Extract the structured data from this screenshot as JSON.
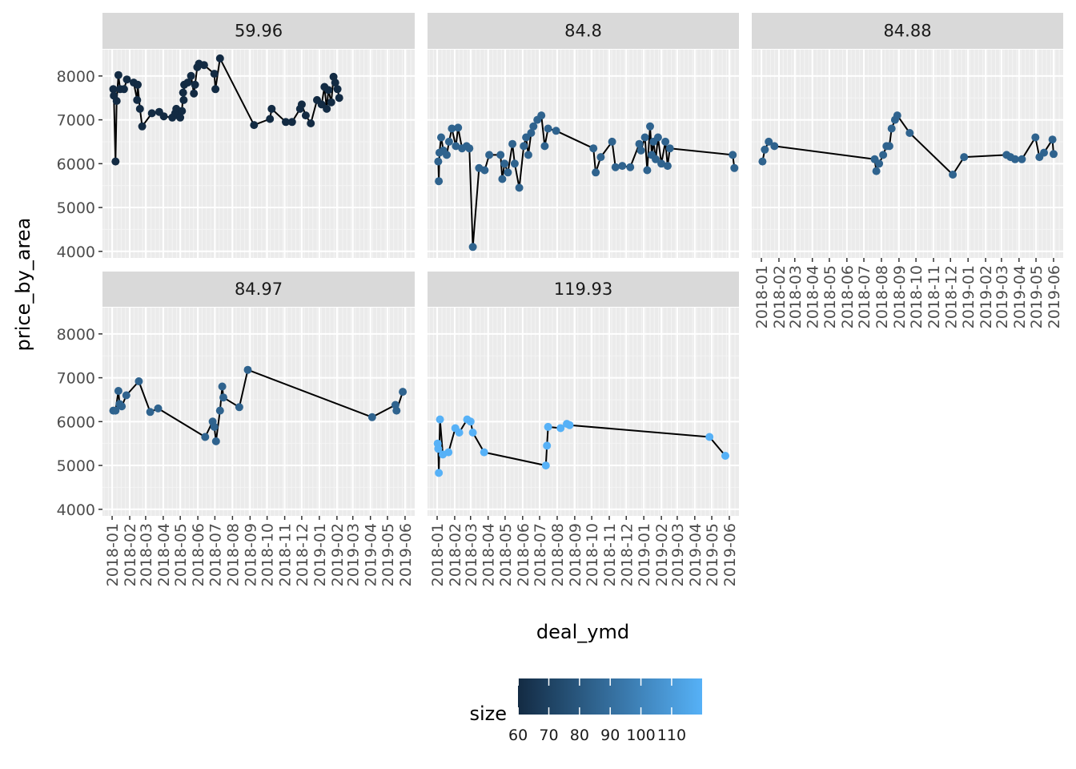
{
  "chart_data": {
    "type": "line",
    "subtype": "faceted line + points (ggplot2 facet_wrap)",
    "xlabel": "deal_ymd",
    "ylabel": "price_by_area",
    "xlim": [
      "2017-12-15",
      "2019-06-18"
    ],
    "ylim": [
      3850,
      8600
    ],
    "y_ticks": [
      4000,
      5000,
      6000,
      7000,
      8000
    ],
    "x_ticks": [
      "2018-01",
      "2018-02",
      "2018-03",
      "2018-04",
      "2018-05",
      "2018-06",
      "2018-07",
      "2018-08",
      "2018-09",
      "2018-10",
      "2018-11",
      "2018-12",
      "2019-01",
      "2019-02",
      "2019-03",
      "2019-04",
      "2019-05",
      "2019-06"
    ],
    "grid": true,
    "panel_background": "#ebebeb",
    "strip_background": "#d9d9d9",
    "line_color": "#000000",
    "legend": {
      "title": "size",
      "position": "bottom",
      "type": "colorbar",
      "range": [
        59.96,
        119.93
      ],
      "breaks": [
        60,
        70,
        80,
        90,
        100,
        110
      ],
      "break_labels": [
        "60",
        "70",
        "80",
        "90",
        "100",
        "110"
      ],
      "color_low": "#132B43",
      "color_high": "#56B1F7"
    },
    "facets": [
      {
        "label": "59.96",
        "size": 59.96,
        "points": [
          [
            "2018-01-03",
            7700
          ],
          [
            "2018-01-04",
            7550
          ],
          [
            "2018-01-07",
            6050
          ],
          [
            "2018-01-09",
            7430
          ],
          [
            "2018-01-12",
            8020
          ],
          [
            "2018-01-15",
            7700
          ],
          [
            "2018-01-22",
            7700
          ],
          [
            "2018-01-27",
            7920
          ],
          [
            "2018-02-08",
            7850
          ],
          [
            "2018-02-14",
            7450
          ],
          [
            "2018-02-15",
            7800
          ],
          [
            "2018-02-19",
            7250
          ],
          [
            "2018-02-23",
            6850
          ],
          [
            "2018-03-12",
            7150
          ],
          [
            "2018-03-25",
            7180
          ],
          [
            "2018-04-02",
            7080
          ],
          [
            "2018-04-17",
            7050
          ],
          [
            "2018-04-22",
            7150
          ],
          [
            "2018-04-24",
            7250
          ],
          [
            "2018-04-27",
            7100
          ],
          [
            "2018-05-01",
            7050
          ],
          [
            "2018-05-04",
            7200
          ],
          [
            "2018-05-06",
            7620
          ],
          [
            "2018-05-07",
            7450
          ],
          [
            "2018-05-08",
            7800
          ],
          [
            "2018-05-14",
            7850
          ],
          [
            "2018-05-20",
            8000
          ],
          [
            "2018-05-25",
            7600
          ],
          [
            "2018-05-27",
            7800
          ],
          [
            "2018-05-31",
            8200
          ],
          [
            "2018-06-03",
            8280
          ],
          [
            "2018-06-12",
            8250
          ],
          [
            "2018-06-30",
            8050
          ],
          [
            "2018-07-02",
            7700
          ],
          [
            "2018-07-10",
            8400
          ],
          [
            "2018-09-08",
            6880
          ],
          [
            "2018-10-06",
            7020
          ],
          [
            "2018-10-09",
            7250
          ],
          [
            "2018-11-03",
            6950
          ],
          [
            "2018-11-14",
            6950
          ],
          [
            "2018-11-28",
            7250
          ],
          [
            "2018-12-01",
            7350
          ],
          [
            "2018-12-08",
            7100
          ],
          [
            "2018-12-17",
            6920
          ],
          [
            "2018-12-28",
            7450
          ],
          [
            "2019-01-05",
            7350
          ],
          [
            "2019-01-10",
            7750
          ],
          [
            "2019-01-14",
            7250
          ],
          [
            "2019-01-17",
            7680
          ],
          [
            "2019-01-22",
            7400
          ],
          [
            "2019-01-26",
            7980
          ],
          [
            "2019-01-29",
            7850
          ],
          [
            "2019-02-02",
            7700
          ],
          [
            "2019-02-05",
            7500
          ]
        ]
      },
      {
        "label": "84.8",
        "size": 84.8,
        "points": [
          [
            "2018-01-03",
            6050
          ],
          [
            "2018-01-04",
            5600
          ],
          [
            "2018-01-05",
            6250
          ],
          [
            "2018-01-08",
            6600
          ],
          [
            "2018-01-12",
            6300
          ],
          [
            "2018-01-18",
            6200
          ],
          [
            "2018-01-22",
            6500
          ],
          [
            "2018-01-27",
            6800
          ],
          [
            "2018-02-03",
            6400
          ],
          [
            "2018-02-07",
            6820
          ],
          [
            "2018-02-14",
            6350
          ],
          [
            "2018-02-22",
            6400
          ],
          [
            "2018-02-27",
            6350
          ],
          [
            "2018-03-05",
            4100
          ],
          [
            "2018-03-16",
            5900
          ],
          [
            "2018-03-26",
            5850
          ],
          [
            "2018-04-03",
            6200
          ],
          [
            "2018-04-23",
            6200
          ],
          [
            "2018-04-26",
            5650
          ],
          [
            "2018-04-30",
            6000
          ],
          [
            "2018-05-06",
            5800
          ],
          [
            "2018-05-14",
            6450
          ],
          [
            "2018-05-18",
            6000
          ],
          [
            "2018-05-26",
            5450
          ],
          [
            "2018-06-03",
            6400
          ],
          [
            "2018-06-07",
            6600
          ],
          [
            "2018-06-11",
            6200
          ],
          [
            "2018-06-16",
            6700
          ],
          [
            "2018-06-20",
            6850
          ],
          [
            "2018-06-27",
            7000
          ],
          [
            "2018-07-04",
            7100
          ],
          [
            "2018-07-10",
            6400
          ],
          [
            "2018-07-16",
            6800
          ],
          [
            "2018-07-30",
            6750
          ],
          [
            "2018-10-04",
            6350
          ],
          [
            "2018-10-08",
            5800
          ],
          [
            "2018-10-17",
            6150
          ],
          [
            "2018-11-06",
            6500
          ],
          [
            "2018-11-12",
            5920
          ],
          [
            "2018-11-24",
            5950
          ],
          [
            "2018-12-08",
            5920
          ],
          [
            "2018-12-24",
            6450
          ],
          [
            "2018-12-27",
            6300
          ],
          [
            "2019-01-03",
            6600
          ],
          [
            "2019-01-07",
            5850
          ],
          [
            "2019-01-12",
            6850
          ],
          [
            "2019-01-15",
            6200
          ],
          [
            "2019-01-18",
            6500
          ],
          [
            "2019-01-22",
            6100
          ],
          [
            "2019-01-26",
            6600
          ],
          [
            "2019-02-01",
            6000
          ],
          [
            "2019-02-08",
            6500
          ],
          [
            "2019-02-12",
            5950
          ],
          [
            "2019-02-16",
            6350
          ],
          [
            "2019-06-07",
            6200
          ],
          [
            "2019-06-10",
            5900
          ]
        ]
      },
      {
        "label": "84.88",
        "size": 84.88,
        "points": [
          [
            "2018-01-03",
            6050
          ],
          [
            "2018-01-07",
            6320
          ],
          [
            "2018-01-14",
            6500
          ],
          [
            "2018-01-24",
            6400
          ],
          [
            "2018-07-20",
            6100
          ],
          [
            "2018-07-23",
            5830
          ],
          [
            "2018-07-28",
            6000
          ],
          [
            "2018-08-04",
            6200
          ],
          [
            "2018-08-10",
            6400
          ],
          [
            "2018-08-15",
            6400
          ],
          [
            "2018-08-19",
            6800
          ],
          [
            "2018-08-25",
            7000
          ],
          [
            "2018-08-29",
            7100
          ],
          [
            "2018-09-20",
            6700
          ],
          [
            "2018-12-05",
            5750
          ],
          [
            "2018-12-25",
            6150
          ],
          [
            "2019-03-10",
            6200
          ],
          [
            "2019-03-17",
            6150
          ],
          [
            "2019-03-25",
            6100
          ],
          [
            "2019-04-06",
            6100
          ],
          [
            "2019-04-30",
            6600
          ],
          [
            "2019-05-07",
            6150
          ],
          [
            "2019-05-15",
            6250
          ],
          [
            "2019-05-30",
            6550
          ],
          [
            "2019-06-01",
            6220
          ]
        ]
      },
      {
        "label": "84.97",
        "size": 84.97,
        "points": [
          [
            "2018-01-03",
            6250
          ],
          [
            "2018-01-07",
            6250
          ],
          [
            "2018-01-12",
            6700
          ],
          [
            "2018-01-14",
            6400
          ],
          [
            "2018-01-18",
            6350
          ],
          [
            "2018-01-26",
            6600
          ],
          [
            "2018-02-17",
            6920
          ],
          [
            "2018-03-09",
            6220
          ],
          [
            "2018-03-23",
            6300
          ],
          [
            "2018-06-14",
            5650
          ],
          [
            "2018-06-27",
            6000
          ],
          [
            "2018-06-30",
            5880
          ],
          [
            "2018-07-03",
            5550
          ],
          [
            "2018-07-10",
            6250
          ],
          [
            "2018-07-14",
            6800
          ],
          [
            "2018-07-16",
            6550
          ],
          [
            "2018-08-13",
            6330
          ],
          [
            "2018-08-28",
            7180
          ],
          [
            "2019-04-04",
            6100
          ],
          [
            "2019-05-15",
            6380
          ],
          [
            "2019-05-17",
            6250
          ],
          [
            "2019-05-28",
            6680
          ]
        ]
      },
      {
        "label": "119.93",
        "size": 119.93,
        "points": [
          [
            "2018-01-02",
            5500
          ],
          [
            "2018-01-03",
            5380
          ],
          [
            "2018-01-04",
            4830
          ],
          [
            "2018-01-06",
            6050
          ],
          [
            "2018-01-11",
            5250
          ],
          [
            "2018-01-21",
            5300
          ],
          [
            "2018-02-02",
            5850
          ],
          [
            "2018-02-09",
            5750
          ],
          [
            "2018-02-23",
            6050
          ],
          [
            "2018-03-01",
            6000
          ],
          [
            "2018-03-05",
            5750
          ],
          [
            "2018-03-25",
            5300
          ],
          [
            "2018-07-12",
            5000
          ],
          [
            "2018-07-14",
            5450
          ],
          [
            "2018-07-16",
            5880
          ],
          [
            "2018-08-07",
            5850
          ],
          [
            "2018-08-18",
            5950
          ],
          [
            "2018-08-23",
            5920
          ],
          [
            "2019-04-27",
            5650
          ],
          [
            "2019-05-25",
            5220
          ]
        ]
      }
    ]
  }
}
